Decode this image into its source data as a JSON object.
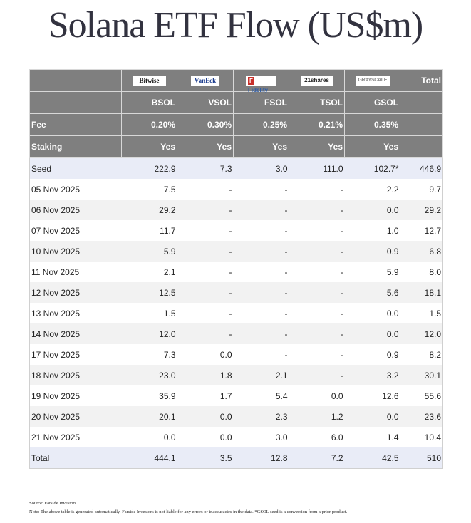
{
  "title": "Solana ETF Flow (US$m)",
  "table": {
    "issuers": [
      {
        "name": "Bitwise",
        "logo_text": "Bitwise",
        "logo_icon": "bitwise-logo"
      },
      {
        "name": "VanEck",
        "logo_text": "VanEck",
        "logo_icon": "vaneck-logo"
      },
      {
        "name": "Fidelity",
        "logo_text": "Fidelity",
        "logo_icon": "fidelity-logo"
      },
      {
        "name": "21shares",
        "logo_text": "21shares",
        "logo_icon": "21shares-logo"
      },
      {
        "name": "Grayscale",
        "logo_text": "GRAYSCALE",
        "logo_icon": "grayscale-logo"
      }
    ],
    "total_header": "Total",
    "tickers": [
      "BSOL",
      "VSOL",
      "FSOL",
      "TSOL",
      "GSOL"
    ],
    "fee_label": "Fee",
    "fees": [
      "0.20%",
      "0.30%",
      "0.25%",
      "0.21%",
      "0.35%"
    ],
    "staking_label": "Staking",
    "staking": [
      "Yes",
      "Yes",
      "Yes",
      "Yes",
      "Yes"
    ],
    "rows": [
      {
        "label": "Seed",
        "values": [
          "222.9",
          "7.3",
          "3.0",
          "111.0",
          "102.7*"
        ],
        "total": "446.9"
      },
      {
        "label": "05 Nov 2025",
        "values": [
          "7.5",
          "-",
          "-",
          "-",
          "2.2"
        ],
        "total": "9.7"
      },
      {
        "label": "06 Nov 2025",
        "values": [
          "29.2",
          "-",
          "-",
          "-",
          "0.0"
        ],
        "total": "29.2"
      },
      {
        "label": "07 Nov 2025",
        "values": [
          "11.7",
          "-",
          "-",
          "-",
          "1.0"
        ],
        "total": "12.7"
      },
      {
        "label": "10 Nov 2025",
        "values": [
          "5.9",
          "-",
          "-",
          "-",
          "0.9"
        ],
        "total": "6.8"
      },
      {
        "label": "11 Nov 2025",
        "values": [
          "2.1",
          "-",
          "-",
          "-",
          "5.9"
        ],
        "total": "8.0"
      },
      {
        "label": "12 Nov 2025",
        "values": [
          "12.5",
          "-",
          "-",
          "-",
          "5.6"
        ],
        "total": "18.1"
      },
      {
        "label": "13 Nov 2025",
        "values": [
          "1.5",
          "-",
          "-",
          "-",
          "0.0"
        ],
        "total": "1.5"
      },
      {
        "label": "14 Nov 2025",
        "values": [
          "12.0",
          "-",
          "-",
          "-",
          "0.0"
        ],
        "total": "12.0"
      },
      {
        "label": "17 Nov 2025",
        "values": [
          "7.3",
          "0.0",
          "-",
          "-",
          "0.9"
        ],
        "total": "8.2"
      },
      {
        "label": "18 Nov 2025",
        "values": [
          "23.0",
          "1.8",
          "2.1",
          "-",
          "3.2"
        ],
        "total": "30.1"
      },
      {
        "label": "19 Nov 2025",
        "values": [
          "35.9",
          "1.7",
          "5.4",
          "0.0",
          "12.6"
        ],
        "total": "55.6"
      },
      {
        "label": "20 Nov 2025",
        "values": [
          "20.1",
          "0.0",
          "2.3",
          "1.2",
          "0.0"
        ],
        "total": "23.6"
      },
      {
        "label": "21 Nov 2025",
        "values": [
          "0.0",
          "0.0",
          "3.0",
          "6.0",
          "1.4"
        ],
        "total": "10.4"
      }
    ],
    "total_row": {
      "label": "Total",
      "values": [
        "444.1",
        "3.5",
        "12.8",
        "7.2",
        "42.5"
      ],
      "total": "510"
    }
  },
  "footer": {
    "source": "Source: Farside Investors",
    "note": "Note: The above table is generated automatically. Farside Investors is not liable for any errors or inaccuracies in the data. *GSOL seed is a conversion from a prior product."
  },
  "colors": {
    "header_bg": "#7f7f7f",
    "seed_total_bg": "#e9ecf7",
    "stripe_bg": "#f2f2f2",
    "title_color": "#32323f"
  }
}
